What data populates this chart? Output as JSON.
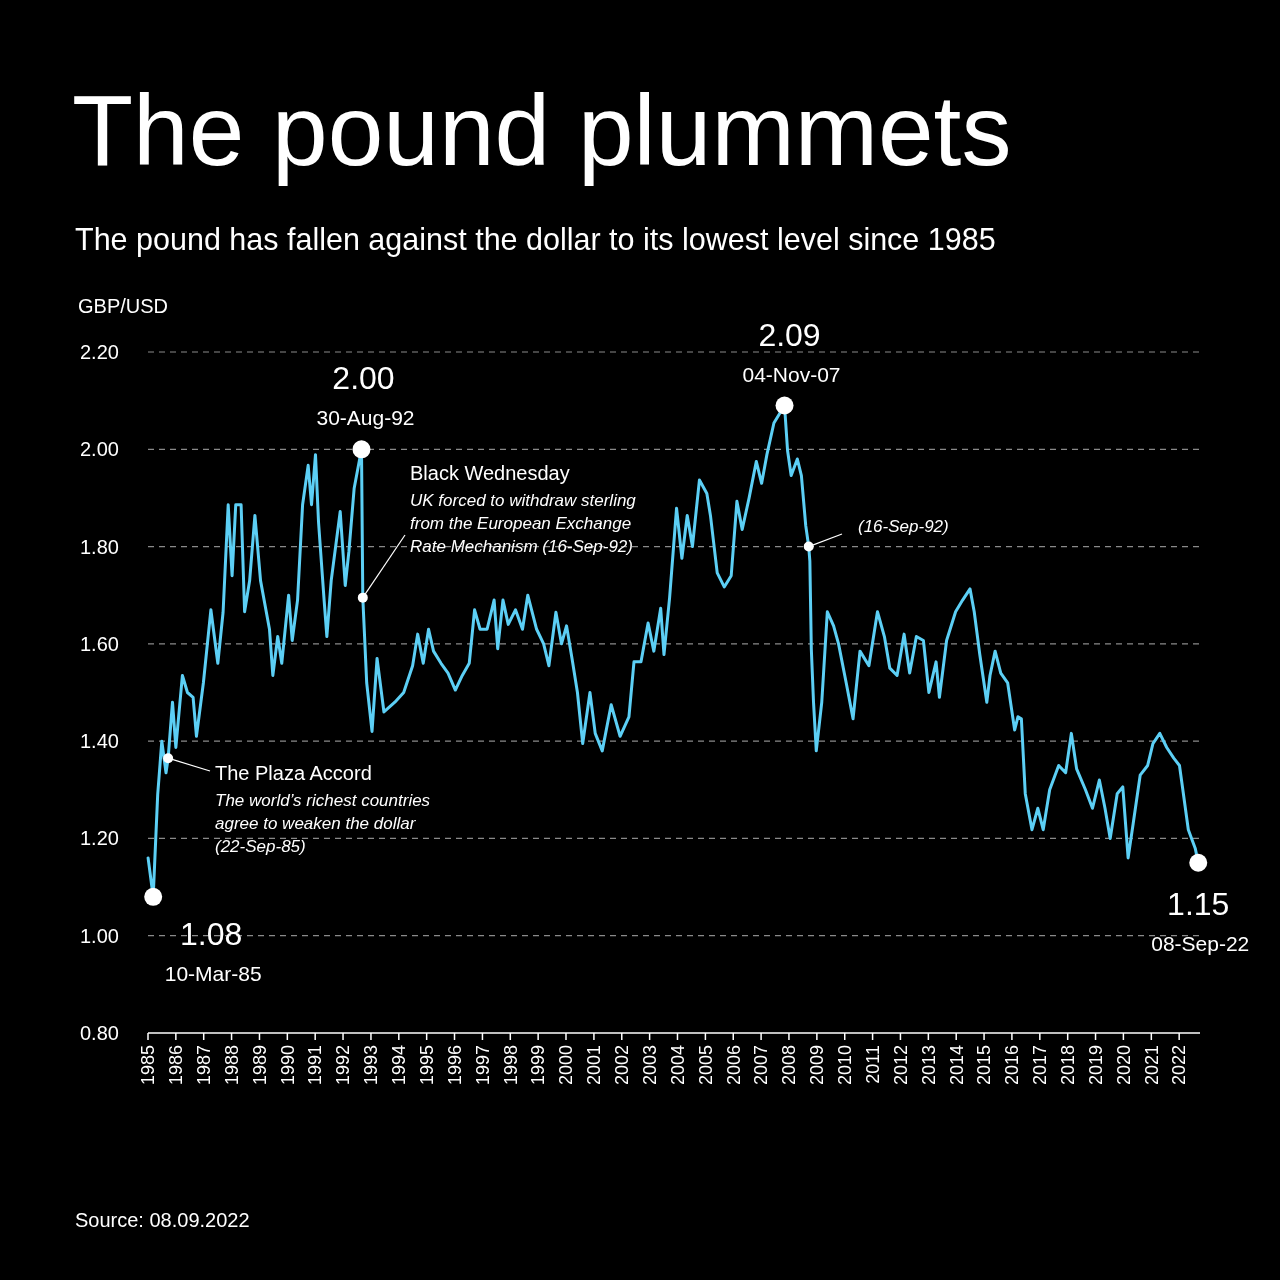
{
  "chart_data": {
    "type": "line",
    "title": "The pound plummets",
    "subtitle": "The pound has fallen against the dollar to its lowest level since 1985",
    "ylabel": "GBP/USD",
    "x": [
      "1985-01-02",
      "1985-03-10",
      "1985-05-08",
      "1985-07-01",
      "1985-08-25",
      "1985-09-22",
      "1985-11-18",
      "1986-01-01",
      "1986-03-28",
      "1986-06-02",
      "1986-08-15",
      "1986-09-28",
      "1986-12-28",
      "1987-04-05",
      "1987-07-05",
      "1987-09-12",
      "1987-11-18",
      "1988-01-08",
      "1988-02-25",
      "1988-05-05",
      "1988-06-20",
      "1988-08-25",
      "1988-11-02",
      "1989-01-15",
      "1989-05-12",
      "1989-06-25",
      "1989-08-28",
      "1989-10-20",
      "1990-01-18",
      "1990-03-06",
      "1990-05-15",
      "1990-07-20",
      "1990-10-01",
      "1990-11-14",
      "1991-01-05",
      "1991-02-14",
      "1991-04-28",
      "1991-06-03",
      "1991-07-30",
      "1991-11-25",
      "1992-01-30",
      "1992-03-18",
      "1992-05-26",
      "1992-08-30",
      "1992-09-16",
      "1992-11-06",
      "1993-01-15",
      "1993-03-22",
      "1993-06-20",
      "1993-11-10",
      "1994-03-06",
      "1994-07-01",
      "1994-09-05",
      "1994-11-17",
      "1995-01-26",
      "1995-04-01",
      "1995-07-08",
      "1995-10-08",
      "1996-01-12",
      "1996-04-12",
      "1996-07-12",
      "1996-09-20",
      "1996-12-01",
      "1997-03-03",
      "1997-06-03",
      "1997-07-20",
      "1997-09-27",
      "1997-12-05",
      "1998-03-10",
      "1998-06-10",
      "1998-08-18",
      "1998-12-12",
      "1999-03-14",
      "1999-05-22",
      "1999-08-22",
      "1999-11-03",
      "2000-01-08",
      "2000-03-20",
      "2000-05-30",
      "2000-08-07",
      "2000-11-10",
      "2001-01-18",
      "2001-04-20",
      "2001-08-15",
      "2001-12-10",
      "2002-04-05",
      "2002-06-10",
      "2002-09-10",
      "2002-12-12",
      "2003-02-25",
      "2003-05-26",
      "2003-07-08",
      "2003-09-20",
      "2003-12-20",
      "2004-02-28",
      "2004-05-08",
      "2004-07-15",
      "2004-10-15",
      "2005-01-20",
      "2005-03-08",
      "2005-06-05",
      "2005-09-05",
      "2005-12-05",
      "2006-02-18",
      "2006-04-28",
      "2006-07-28",
      "2006-10-30",
      "2007-01-08",
      "2007-03-18",
      "2007-06-18",
      "2007-11-04",
      "2007-12-14",
      "2008-01-30",
      "2008-04-20",
      "2008-06-12",
      "2008-08-08",
      "2008-09-16",
      "2008-10-01",
      "2008-10-20",
      "2008-11-18",
      "2008-12-24",
      "2009-03-06",
      "2009-05-18",
      "2009-08-08",
      "2009-10-12",
      "2010-01-20",
      "2010-04-20",
      "2010-07-20",
      "2010-11-14",
      "2011-03-06",
      "2011-06-05",
      "2011-08-15",
      "2011-11-18",
      "2012-02-18",
      "2012-05-01",
      "2012-07-28",
      "2012-10-28",
      "2013-01-08",
      "2013-04-12",
      "2013-05-26",
      "2013-08-28",
      "2013-12-24",
      "2014-03-26",
      "2014-07-01",
      "2014-08-25",
      "2014-11-06",
      "2015-02-06",
      "2015-03-20",
      "2015-05-26",
      "2015-08-08",
      "2015-11-06",
      "2016-02-06",
      "2016-03-20",
      "2016-05-04",
      "2016-06-24",
      "2016-09-20",
      "2016-12-06",
      "2017-02-14",
      "2017-05-10",
      "2017-09-05",
      "2017-12-05",
      "2018-02-18",
      "2018-04-28",
      "2018-08-22",
      "2018-11-22",
      "2019-02-20",
      "2019-05-05",
      "2019-07-12",
      "2019-10-12",
      "2019-12-24",
      "2020-03-03",
      "2020-05-08",
      "2020-08-08",
      "2020-11-14",
      "2021-01-22",
      "2021-04-22",
      "2021-07-22",
      "2021-10-22",
      "2022-01-05",
      "2022-02-18",
      "2022-05-01",
      "2022-07-30",
      "2022-09-08"
    ],
    "series": [
      {
        "color": "#5ccff5",
        "values": [
          1.16,
          1.08,
          1.29,
          1.4,
          1.335,
          1.365,
          1.48,
          1.387,
          1.535,
          1.5,
          1.49,
          1.41,
          1.52,
          1.67,
          1.56,
          1.665,
          1.886,
          1.74,
          1.886,
          1.886,
          1.666,
          1.73,
          1.864,
          1.73,
          1.63,
          1.535,
          1.615,
          1.56,
          1.7,
          1.607,
          1.69,
          1.886,
          1.967,
          1.886,
          1.989,
          1.85,
          1.69,
          1.615,
          1.73,
          1.872,
          1.72,
          1.79,
          1.92,
          2.0,
          1.695,
          1.52,
          1.42,
          1.57,
          1.46,
          1.48,
          1.5,
          1.555,
          1.62,
          1.56,
          1.63,
          1.585,
          1.56,
          1.54,
          1.505,
          1.535,
          1.56,
          1.67,
          1.63,
          1.63,
          1.69,
          1.59,
          1.69,
          1.64,
          1.67,
          1.63,
          1.7,
          1.63,
          1.6,
          1.555,
          1.665,
          1.6,
          1.637,
          1.57,
          1.5,
          1.395,
          1.5,
          1.416,
          1.38,
          1.475,
          1.41,
          1.45,
          1.563,
          1.563,
          1.643,
          1.585,
          1.673,
          1.578,
          1.695,
          1.879,
          1.776,
          1.864,
          1.8,
          1.937,
          1.909,
          1.864,
          1.746,
          1.717,
          1.74,
          1.893,
          1.835,
          1.9,
          1.975,
          1.93,
          1.989,
          2.054,
          2.09,
          1.997,
          1.946,
          1.98,
          1.946,
          1.843,
          1.8,
          1.77,
          1.59,
          1.48,
          1.38,
          1.48,
          1.666,
          1.637,
          1.6,
          1.52,
          1.446,
          1.585,
          1.555,
          1.666,
          1.615,
          1.55,
          1.535,
          1.62,
          1.54,
          1.615,
          1.607,
          1.5,
          1.563,
          1.49,
          1.607,
          1.666,
          1.69,
          1.713,
          1.666,
          1.578,
          1.48,
          1.535,
          1.585,
          1.54,
          1.52,
          1.423,
          1.45,
          1.446,
          1.292,
          1.218,
          1.262,
          1.218,
          1.3,
          1.35,
          1.335,
          1.416,
          1.343,
          1.3,
          1.262,
          1.32,
          1.262,
          1.2,
          1.292,
          1.306,
          1.16,
          1.23,
          1.33,
          1.35,
          1.395,
          1.416,
          1.387,
          1.365,
          1.35,
          1.3,
          1.218,
          1.18,
          1.15
        ]
      }
    ],
    "xlim": [
      "1985-01-01",
      "2022-10-01"
    ],
    "xticks": [
      "1985",
      "1986",
      "1987",
      "1988",
      "1989",
      "1990",
      "1991",
      "1992",
      "1993",
      "1994",
      "1995",
      "1996",
      "1997",
      "1998",
      "1999",
      "2000",
      "2001",
      "2002",
      "2003",
      "2004",
      "2005",
      "2006",
      "2007",
      "2008",
      "2009",
      "2010",
      "2011",
      "2012",
      "2013",
      "2014",
      "2015",
      "2016",
      "2017",
      "2018",
      "2019",
      "2020",
      "2021",
      "2022"
    ],
    "ylim": [
      0.8,
      2.2
    ],
    "yticks": [
      {
        "value": 0.8,
        "label": "0.80"
      },
      {
        "value": 1.0,
        "label": "1.00"
      },
      {
        "value": 1.2,
        "label": "1.20"
      },
      {
        "value": 1.4,
        "label": "1.40"
      },
      {
        "value": 1.6,
        "label": "1.60"
      },
      {
        "value": 1.8,
        "label": "1.80"
      },
      {
        "value": 2.0,
        "label": "2.00"
      },
      {
        "value": 2.2,
        "label": "2.20"
      }
    ],
    "grid": "y",
    "annotations": [
      {
        "text": "1.08\n10-Mar-85",
        "x": "1985-03-10",
        "y": 1.08
      },
      {
        "text": "2.00\n30-Aug-92",
        "x": "1992-08-30",
        "y": 2.0
      },
      {
        "text": "2.09\n04-Nov-07",
        "x": "2007-11-04",
        "y": 2.09
      },
      {
        "text": "1.15\n08-Sep-22",
        "x": "2022-09-08",
        "y": 1.15
      },
      {
        "text": "The Plaza Accord\nThe world’s richest countries\nagree to weaken the dollar\n(22-Sep-85)",
        "x": "1985-09-22",
        "y": 1.365
      },
      {
        "text": "Black Wednesday\nUK forced to withdraw sterling\nfrom the European Exchange\nRate Mechanism (16-Sep-92)",
        "x": "1992-09-16",
        "y": 1.695
      },
      {
        "text": "(16-Sep-92)",
        "x": "2008-09-16",
        "y": 1.8
      },
      "Source: 08.09.2022"
    ]
  }
}
